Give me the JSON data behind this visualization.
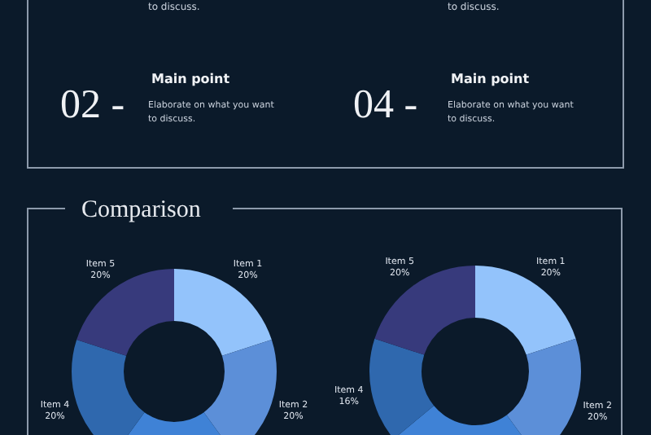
{
  "chart_data": [
    {
      "type": "other",
      "annotations": [
        "to discuss.",
        "to discuss.",
        "02 -",
        "Main point",
        "Elaborate on what you want to discuss.",
        "04 -",
        "Main point",
        "Elaborate on what you want to discuss."
      ]
    },
    {
      "type": "donut",
      "title": "Comparison",
      "categories": [
        "Item 1",
        "Item 2",
        null,
        "Item 4",
        "Item 5"
      ],
      "values": [
        20,
        20,
        20,
        20,
        20
      ],
      "value_labels": [
        "20%",
        "20%",
        null,
        "20%",
        "20%"
      ],
      "colors": [
        "#93c3fb",
        "#5c8fd8",
        "#3f82d6",
        "#2f68ae",
        "#373a7c"
      ]
    },
    {
      "type": "donut",
      "categories": [
        "Item 1",
        "Item 2",
        null,
        "Item 4",
        "Item 5"
      ],
      "values": [
        20,
        20,
        24,
        16,
        20
      ],
      "value_labels": [
        "20%",
        "20%",
        null,
        "16%",
        "20%"
      ],
      "colors": [
        "#93c3fb",
        "#5c8fd8",
        "#3f82d6",
        "#2f68ae",
        "#373a7c"
      ]
    }
  ]
}
